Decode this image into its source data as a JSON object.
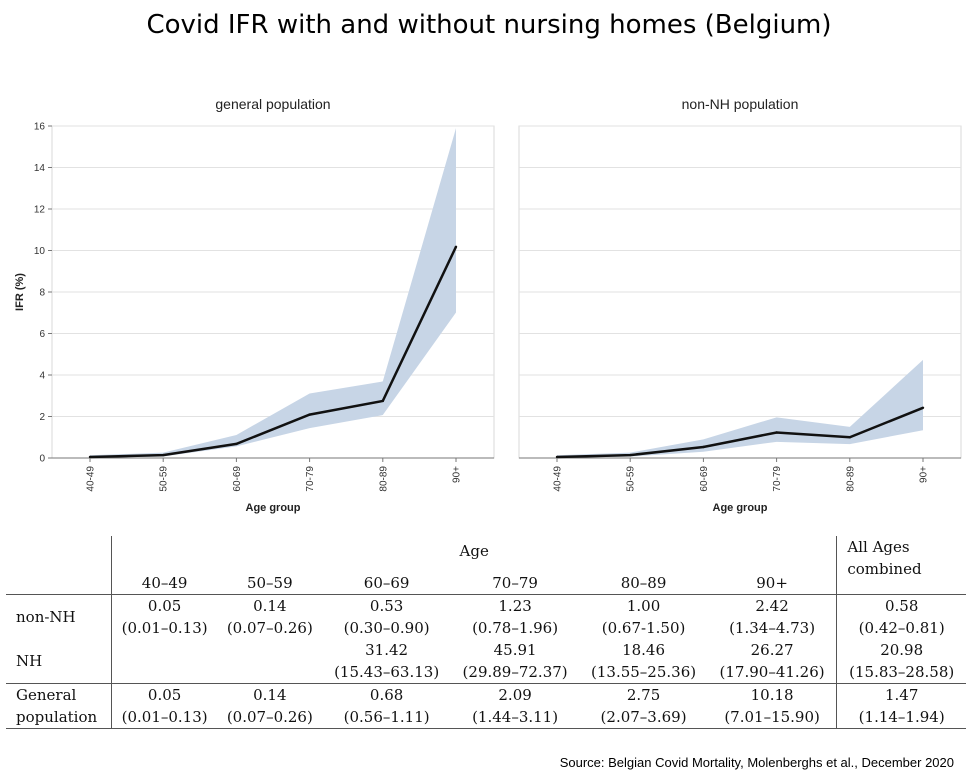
{
  "title": "Covid IFR with and without nursing homes (Belgium)",
  "chart_data": [
    {
      "type": "line",
      "title": "general population",
      "xlabel": "Age group",
      "ylabel": "IFR (%)",
      "categories": [
        "40-49",
        "50-59",
        "60-69",
        "70-79",
        "80-89",
        "90+"
      ],
      "values": [
        0.05,
        0.14,
        0.68,
        2.09,
        2.75,
        10.18
      ],
      "lower": [
        0.01,
        0.07,
        0.56,
        1.44,
        2.07,
        7.01
      ],
      "upper": [
        0.13,
        0.26,
        1.11,
        3.11,
        3.69,
        15.9
      ],
      "ylim": [
        0,
        16
      ],
      "yticks": [
        0,
        2,
        4,
        6,
        8,
        10,
        12,
        14,
        16
      ],
      "grid": true,
      "line_color": "#111111",
      "band_color": "#c7d5e6"
    },
    {
      "type": "line",
      "title": "non-NH population",
      "xlabel": "Age group",
      "ylabel": "",
      "categories": [
        "40-49",
        "50-59",
        "60-69",
        "70-79",
        "80-89",
        "90+"
      ],
      "values": [
        0.05,
        0.14,
        0.53,
        1.23,
        1.0,
        2.42
      ],
      "lower": [
        0.01,
        0.07,
        0.3,
        0.78,
        0.67,
        1.34
      ],
      "upper": [
        0.13,
        0.26,
        0.9,
        1.96,
        1.5,
        4.73
      ],
      "ylim": [
        0,
        16
      ],
      "yticks": [],
      "grid": true,
      "line_color": "#111111",
      "band_color": "#c7d5e6"
    }
  ],
  "table": {
    "group_header": "Age",
    "columns": [
      "40–49",
      "50–59",
      "60–69",
      "70–79",
      "80–89",
      "90+"
    ],
    "all_ages_header": [
      "All Ages",
      "combined"
    ],
    "rows": [
      {
        "label": [
          "non-NH"
        ],
        "cells": [
          [
            "0.05",
            "(0.01–0.13)"
          ],
          [
            "0.14",
            "(0.07–0.26)"
          ],
          [
            "0.53",
            "(0.30–0.90)"
          ],
          [
            "1.23",
            "(0.78–1.96)"
          ],
          [
            "1.00",
            "(0.67-1.50)"
          ],
          [
            "2.42",
            "(1.34–4.73)"
          ]
        ],
        "all": [
          "0.58",
          "(0.42–0.81)"
        ]
      },
      {
        "label": [
          "NH"
        ],
        "cells": [
          [
            "",
            ""
          ],
          [
            "",
            ""
          ],
          [
            "31.42",
            "(15.43–63.13)"
          ],
          [
            "45.91",
            "(29.89–72.37)"
          ],
          [
            "18.46",
            "(13.55–25.36)"
          ],
          [
            "26.27",
            "(17.90–41.26)"
          ]
        ],
        "all": [
          "20.98",
          "(15.83–28.58)"
        ]
      },
      {
        "label": [
          "General",
          "population"
        ],
        "cells": [
          [
            "0.05",
            "(0.01–0.13)"
          ],
          [
            "0.14",
            "(0.07–0.26)"
          ],
          [
            "0.68",
            "(0.56–1.11)"
          ],
          [
            "2.09",
            "(1.44–3.11)"
          ],
          [
            "2.75",
            "(2.07–3.69)"
          ],
          [
            "10.18",
            "(7.01–15.90)"
          ]
        ],
        "all": [
          "1.47",
          "(1.14–1.94)"
        ]
      }
    ]
  },
  "source": "Source: Belgian Covid Mortality, Molenberghs et al., December 2020"
}
